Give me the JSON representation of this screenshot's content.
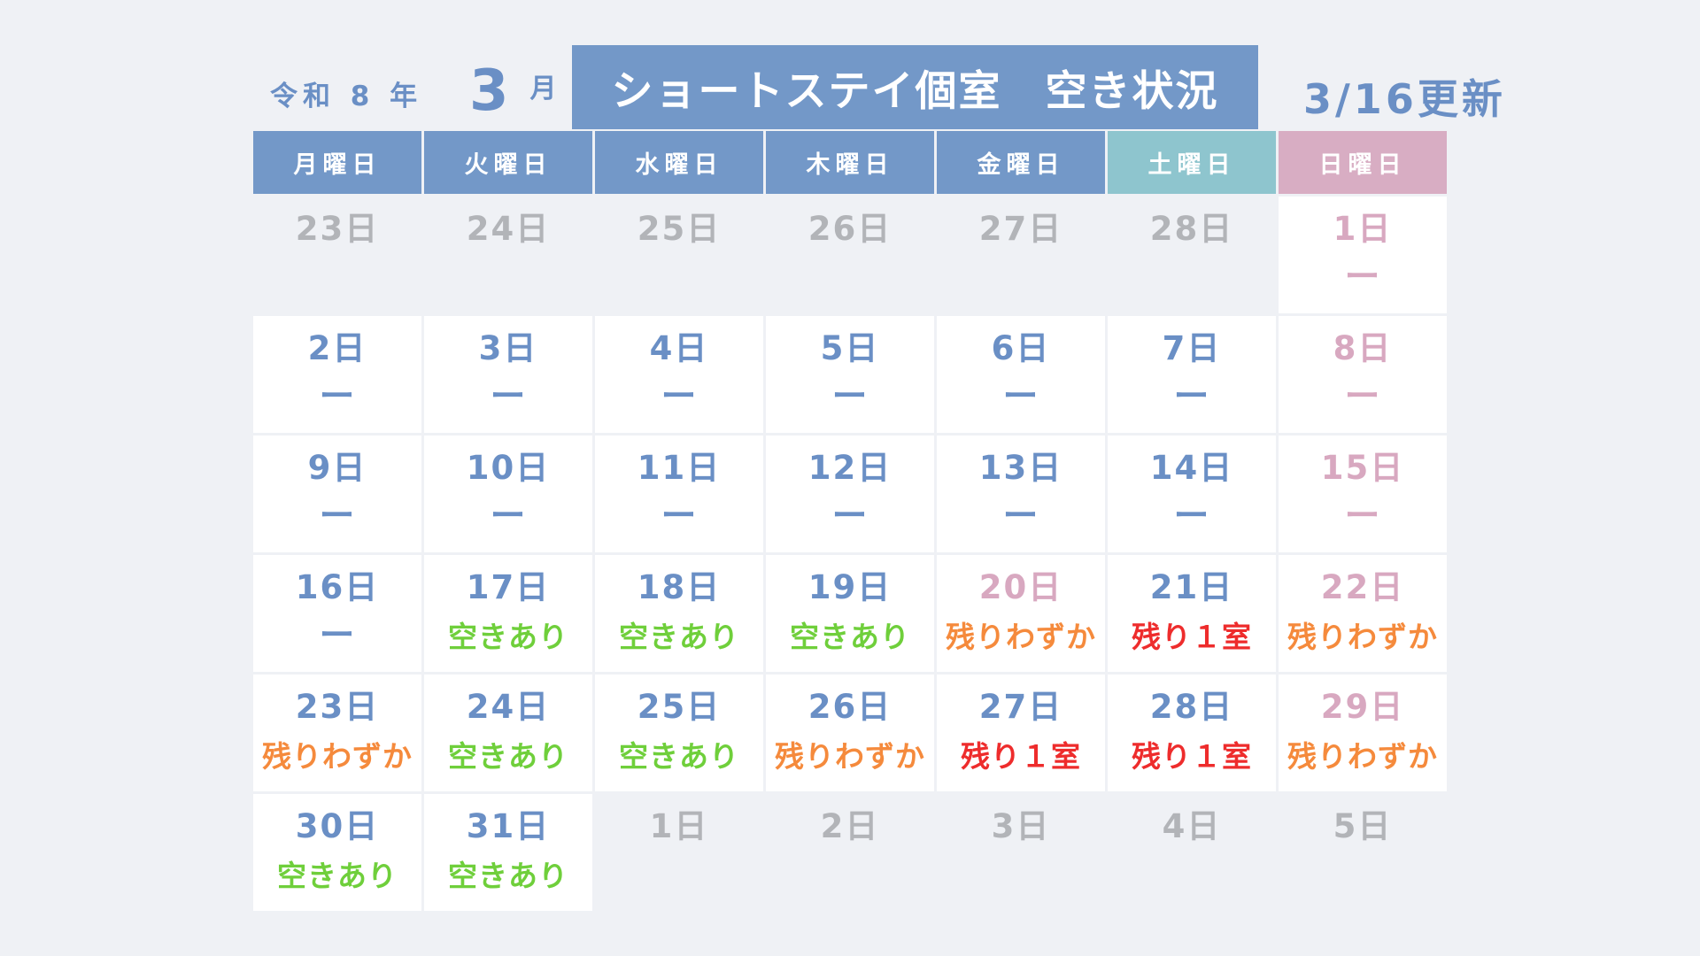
{
  "header": {
    "era": "令和 8 年",
    "month_number": "3",
    "month_unit": "月",
    "title": "ショートステイ個室　空き状況",
    "updated": "3/16更新"
  },
  "weekdays": [
    {
      "label": "月曜日",
      "tone": "blue"
    },
    {
      "label": "火曜日",
      "tone": "blue"
    },
    {
      "label": "水曜日",
      "tone": "blue"
    },
    {
      "label": "木曜日",
      "tone": "blue"
    },
    {
      "label": "金曜日",
      "tone": "blue"
    },
    {
      "label": "土曜日",
      "tone": "sat"
    },
    {
      "label": "日曜日",
      "tone": "sun"
    }
  ],
  "colors": {
    "page_background": "#eff1f5",
    "header_blue": "#7398c8",
    "saturday_header": "#8ec5ce",
    "sunday_header": "#d8adc3",
    "date_blue": "#6a8fc5",
    "date_pink": "#d8a8c0",
    "date_gray": "#b2b4b8",
    "status_available": "#6fcf3b",
    "status_few_left": "#f58a3c",
    "status_one_room": "#ee2c2c"
  },
  "weeks": [
    [
      {
        "day": "23日",
        "tone": "gray",
        "status": "",
        "status_tone": "",
        "blank": true
      },
      {
        "day": "24日",
        "tone": "gray",
        "status": "",
        "status_tone": "",
        "blank": true
      },
      {
        "day": "25日",
        "tone": "gray",
        "status": "",
        "status_tone": "",
        "blank": true
      },
      {
        "day": "26日",
        "tone": "gray",
        "status": "",
        "status_tone": "",
        "blank": true
      },
      {
        "day": "27日",
        "tone": "gray",
        "status": "",
        "status_tone": "",
        "blank": true
      },
      {
        "day": "28日",
        "tone": "gray",
        "status": "",
        "status_tone": "",
        "blank": true
      },
      {
        "day": "1日",
        "tone": "pink",
        "status": "ー",
        "status_tone": "pink",
        "blank": false
      }
    ],
    [
      {
        "day": "2日",
        "tone": "blue",
        "status": "ー",
        "status_tone": "blue",
        "blank": false
      },
      {
        "day": "3日",
        "tone": "blue",
        "status": "ー",
        "status_tone": "blue",
        "blank": false
      },
      {
        "day": "4日",
        "tone": "blue",
        "status": "ー",
        "status_tone": "blue",
        "blank": false
      },
      {
        "day": "5日",
        "tone": "blue",
        "status": "ー",
        "status_tone": "blue",
        "blank": false
      },
      {
        "day": "6日",
        "tone": "blue",
        "status": "ー",
        "status_tone": "blue",
        "blank": false
      },
      {
        "day": "7日",
        "tone": "blue",
        "status": "ー",
        "status_tone": "blue",
        "blank": false
      },
      {
        "day": "8日",
        "tone": "pink",
        "status": "ー",
        "status_tone": "pink",
        "blank": false
      }
    ],
    [
      {
        "day": "9日",
        "tone": "blue",
        "status": "ー",
        "status_tone": "blue",
        "blank": false
      },
      {
        "day": "10日",
        "tone": "blue",
        "status": "ー",
        "status_tone": "blue",
        "blank": false
      },
      {
        "day": "11日",
        "tone": "blue",
        "status": "ー",
        "status_tone": "blue",
        "blank": false
      },
      {
        "day": "12日",
        "tone": "blue",
        "status": "ー",
        "status_tone": "blue",
        "blank": false
      },
      {
        "day": "13日",
        "tone": "blue",
        "status": "ー",
        "status_tone": "blue",
        "blank": false
      },
      {
        "day": "14日",
        "tone": "blue",
        "status": "ー",
        "status_tone": "blue",
        "blank": false
      },
      {
        "day": "15日",
        "tone": "pink",
        "status": "ー",
        "status_tone": "pink",
        "blank": false
      }
    ],
    [
      {
        "day": "16日",
        "tone": "blue",
        "status": "ー",
        "status_tone": "blue",
        "blank": false
      },
      {
        "day": "17日",
        "tone": "blue",
        "status": "空きあり",
        "status_tone": "green",
        "blank": false
      },
      {
        "day": "18日",
        "tone": "blue",
        "status": "空きあり",
        "status_tone": "green",
        "blank": false
      },
      {
        "day": "19日",
        "tone": "blue",
        "status": "空きあり",
        "status_tone": "green",
        "blank": false
      },
      {
        "day": "20日",
        "tone": "pink",
        "status": "残りわずか",
        "status_tone": "orange",
        "blank": false
      },
      {
        "day": "21日",
        "tone": "blue",
        "status": "残り１室",
        "status_tone": "red",
        "blank": false
      },
      {
        "day": "22日",
        "tone": "pink",
        "status": "残りわずか",
        "status_tone": "orange",
        "blank": false
      }
    ],
    [
      {
        "day": "23日",
        "tone": "blue",
        "status": "残りわずか",
        "status_tone": "orange",
        "blank": false
      },
      {
        "day": "24日",
        "tone": "blue",
        "status": "空きあり",
        "status_tone": "green",
        "blank": false
      },
      {
        "day": "25日",
        "tone": "blue",
        "status": "空きあり",
        "status_tone": "green",
        "blank": false
      },
      {
        "day": "26日",
        "tone": "blue",
        "status": "残りわずか",
        "status_tone": "orange",
        "blank": false
      },
      {
        "day": "27日",
        "tone": "blue",
        "status": "残り１室",
        "status_tone": "red",
        "blank": false
      },
      {
        "day": "28日",
        "tone": "blue",
        "status": "残り１室",
        "status_tone": "red",
        "blank": false
      },
      {
        "day": "29日",
        "tone": "pink",
        "status": "残りわずか",
        "status_tone": "orange",
        "blank": false
      }
    ],
    [
      {
        "day": "30日",
        "tone": "blue",
        "status": "空きあり",
        "status_tone": "green",
        "blank": false
      },
      {
        "day": "31日",
        "tone": "blue",
        "status": "空きあり",
        "status_tone": "green",
        "blank": false
      },
      {
        "day": "1日",
        "tone": "gray",
        "status": "",
        "status_tone": "",
        "blank": true
      },
      {
        "day": "2日",
        "tone": "gray",
        "status": "",
        "status_tone": "",
        "blank": true
      },
      {
        "day": "3日",
        "tone": "gray",
        "status": "",
        "status_tone": "",
        "blank": true
      },
      {
        "day": "4日",
        "tone": "gray",
        "status": "",
        "status_tone": "",
        "blank": true
      },
      {
        "day": "5日",
        "tone": "gray",
        "status": "",
        "status_tone": "",
        "blank": true
      }
    ]
  ]
}
